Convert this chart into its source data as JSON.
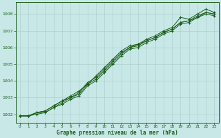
{
  "xlabel": "Graphe pression niveau de la mer (hPa)",
  "background_color": "#c8e8e8",
  "grid_color": "#b0d0d0",
  "line_color": "#1a5e1a",
  "ylim": [
    1001.5,
    1008.7
  ],
  "xlim": [
    -0.5,
    23.5
  ],
  "yticks": [
    1002,
    1003,
    1004,
    1005,
    1006,
    1007,
    1008
  ],
  "xticks": [
    0,
    1,
    2,
    3,
    4,
    5,
    6,
    7,
    8,
    9,
    10,
    11,
    12,
    13,
    14,
    15,
    16,
    17,
    18,
    19,
    20,
    21,
    22,
    23
  ],
  "series": [
    [
      1001.9,
      1001.9,
      1002.1,
      1002.2,
      1002.5,
      1002.8,
      1003.1,
      1003.4,
      1003.8,
      1004.3,
      1004.8,
      1005.3,
      1005.8,
      1006.1,
      1006.2,
      1006.5,
      1006.7,
      1007.0,
      1007.2,
      1007.8,
      1007.7,
      1008.0,
      1008.3,
      1008.1
    ],
    [
      1001.9,
      1001.9,
      1002.1,
      1002.2,
      1002.5,
      1002.8,
      1003.0,
      1003.3,
      1003.9,
      1004.2,
      1004.7,
      1005.2,
      1005.7,
      1006.0,
      1006.2,
      1006.4,
      1006.6,
      1006.9,
      1007.1,
      1007.5,
      1007.6,
      1007.9,
      1008.1,
      1008.0
    ],
    [
      1001.9,
      1001.9,
      1002.1,
      1002.1,
      1002.4,
      1002.7,
      1003.0,
      1003.2,
      1003.8,
      1004.1,
      1004.6,
      1005.1,
      1005.6,
      1006.0,
      1006.1,
      1006.4,
      1006.6,
      1006.9,
      1007.1,
      1007.5,
      1007.6,
      1007.8,
      1008.1,
      1008.0
    ],
    [
      1001.9,
      1001.9,
      1002.0,
      1002.1,
      1002.4,
      1002.6,
      1002.9,
      1003.1,
      1003.7,
      1004.0,
      1004.5,
      1005.0,
      1005.5,
      1005.9,
      1006.0,
      1006.3,
      1006.5,
      1006.8,
      1007.0,
      1007.4,
      1007.5,
      1007.8,
      1008.0,
      1007.9
    ]
  ]
}
